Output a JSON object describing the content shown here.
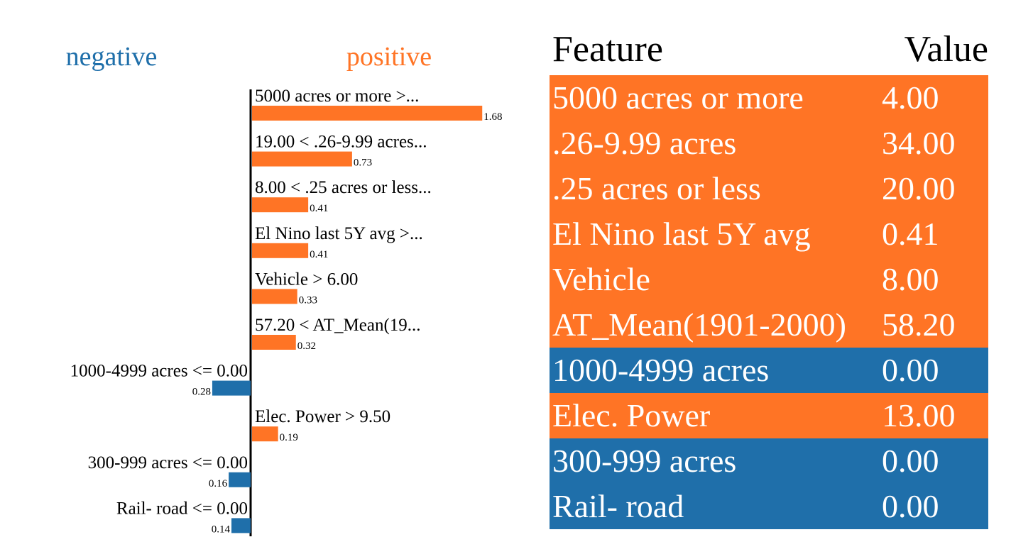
{
  "colors": {
    "positive": "#ff7425",
    "negative": "#1f6faa",
    "axis": "#000000",
    "text": "#000000"
  },
  "chart_data": {
    "type": "bar",
    "orientation": "horizontal",
    "legend": {
      "negative": "negative",
      "positive": "positive"
    },
    "bars": [
      {
        "label": "5000 acres or more >...",
        "value": 1.68,
        "value_label": "1.68",
        "sign": "positive"
      },
      {
        "label": "19.00 < .26-9.99 acres...",
        "value": 0.73,
        "value_label": "0.73",
        "sign": "positive"
      },
      {
        "label": "8.00 < .25 acres or less...",
        "value": 0.41,
        "value_label": "0.41",
        "sign": "positive"
      },
      {
        "label": "El Nino last 5Y avg >...",
        "value": 0.41,
        "value_label": "0.41",
        "sign": "positive"
      },
      {
        "label": "Vehicle > 6.00",
        "value": 0.33,
        "value_label": "0.33",
        "sign": "positive"
      },
      {
        "label": "57.20 < AT_Mean(19...",
        "value": 0.32,
        "value_label": "0.32",
        "sign": "positive"
      },
      {
        "label": "1000-4999 acres <= 0.00",
        "value": -0.28,
        "value_label": "0.28",
        "sign": "negative"
      },
      {
        "label": "Elec. Power > 9.50",
        "value": 0.19,
        "value_label": "0.19",
        "sign": "positive"
      },
      {
        "label": "300-999 acres <= 0.00",
        "value": -0.16,
        "value_label": "0.16",
        "sign": "negative"
      },
      {
        "label": "Rail- road <= 0.00",
        "value": -0.14,
        "value_label": "0.14",
        "sign": "negative"
      }
    ]
  },
  "table": {
    "headers": {
      "feature": "Feature",
      "value": "Value"
    },
    "rows": [
      {
        "feature": "5000 acres or more",
        "value": "4.00",
        "sign": "positive"
      },
      {
        "feature": ".26-9.99 acres",
        "value": "34.00",
        "sign": "positive"
      },
      {
        "feature": ".25 acres or less",
        "value": "20.00",
        "sign": "positive"
      },
      {
        "feature": "El Nino last 5Y avg",
        "value": "0.41",
        "sign": "positive"
      },
      {
        "feature": "Vehicle",
        "value": "8.00",
        "sign": "positive"
      },
      {
        "feature": "AT_Mean(1901-2000)",
        "value": "58.20",
        "sign": "positive"
      },
      {
        "feature": "1000-4999 acres",
        "value": "0.00",
        "sign": "negative"
      },
      {
        "feature": "Elec. Power",
        "value": "13.00",
        "sign": "positive"
      },
      {
        "feature": "300-999 acres",
        "value": "0.00",
        "sign": "negative"
      },
      {
        "feature": "Rail- road",
        "value": "0.00",
        "sign": "negative"
      }
    ]
  }
}
